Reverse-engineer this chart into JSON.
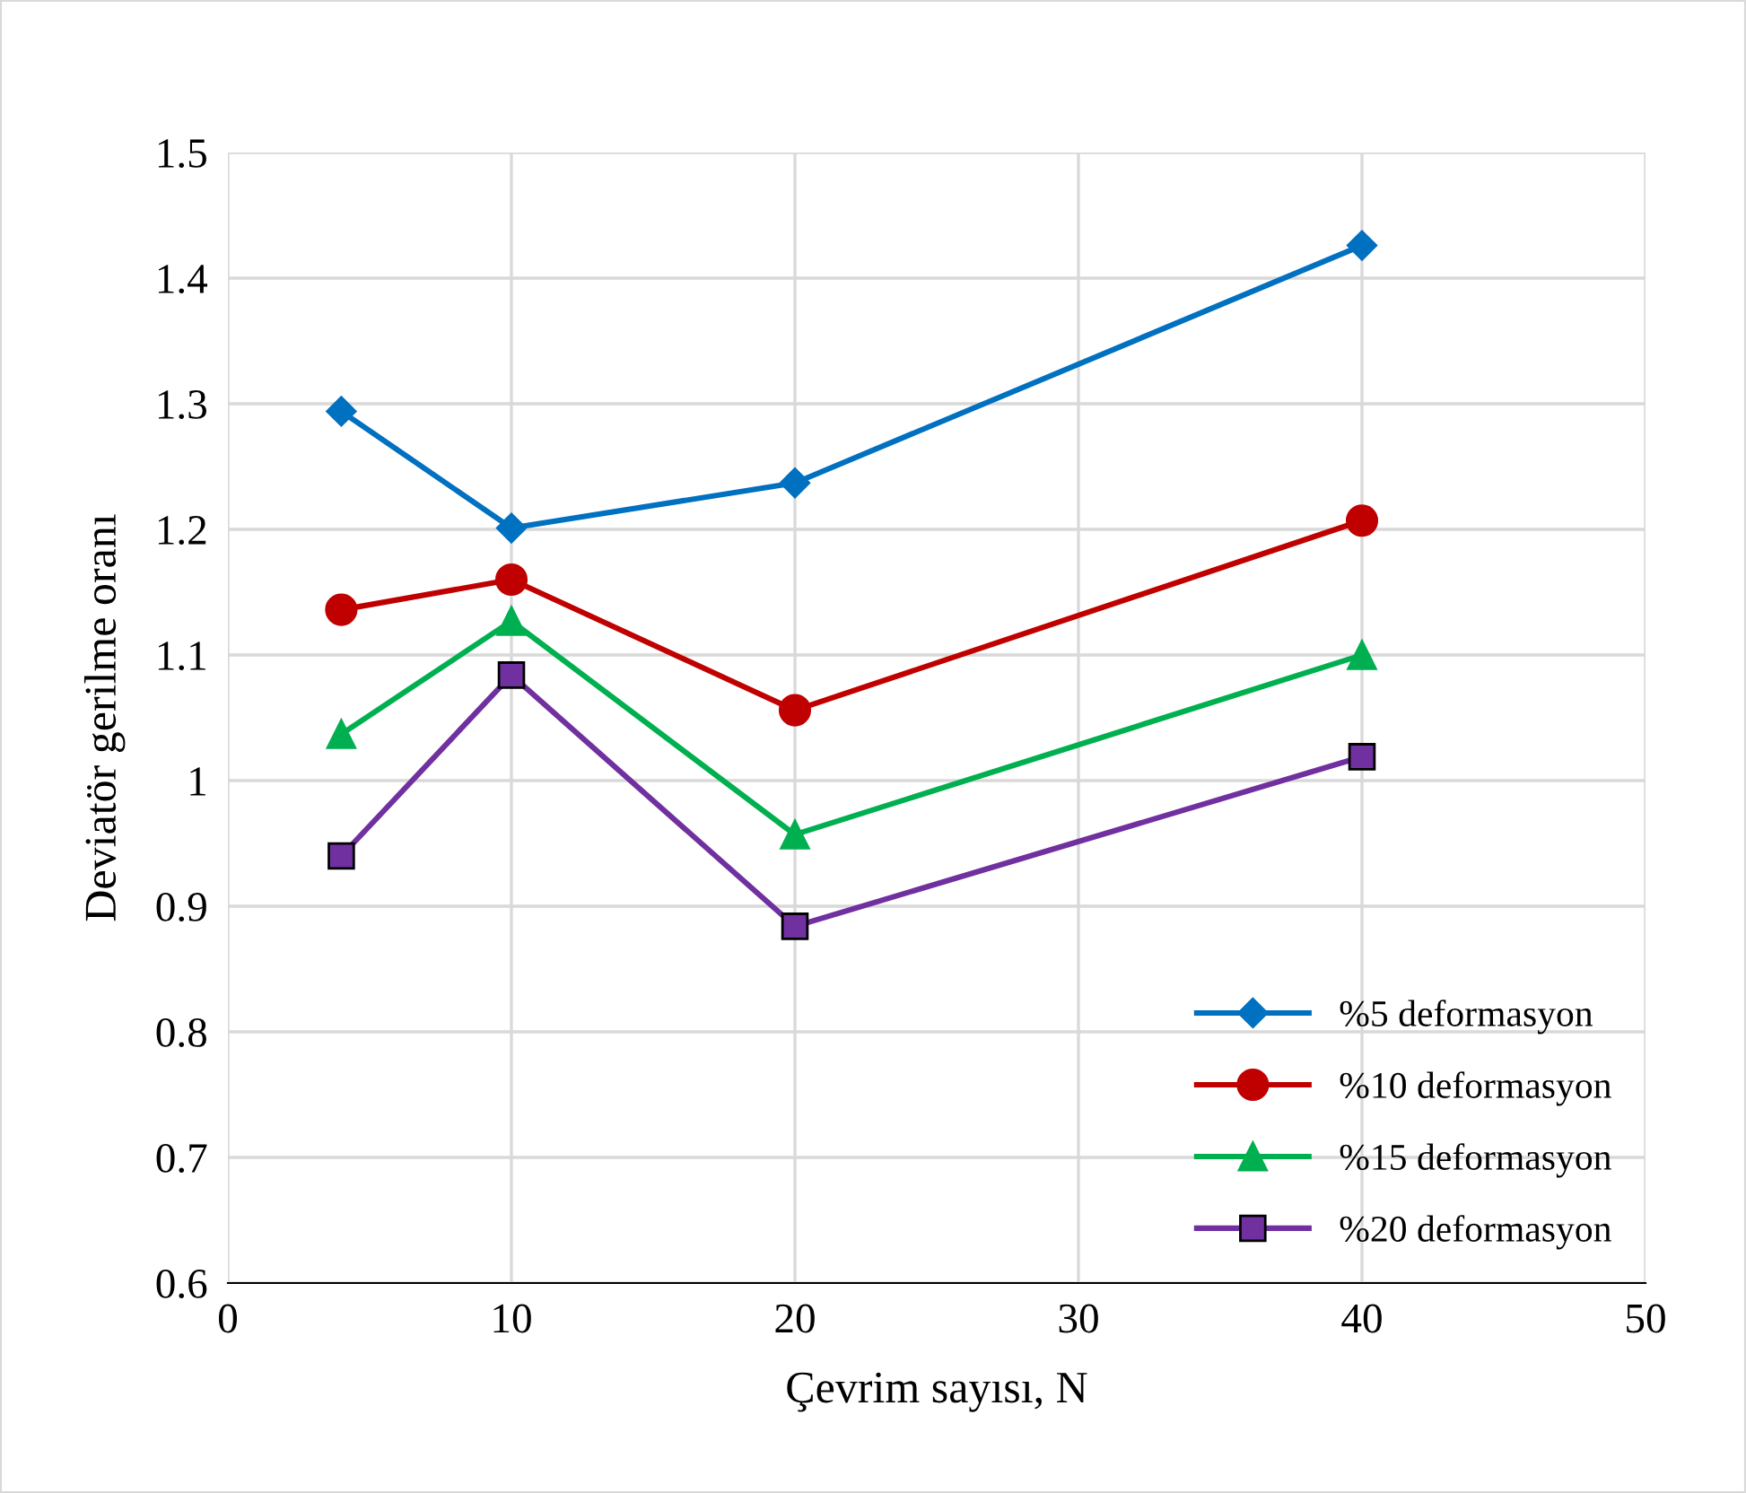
{
  "chart_data": {
    "type": "line",
    "xlabel": "Çevrim sayısı, N",
    "ylabel": "Deviatör gerilme oranı",
    "x": [
      4,
      10,
      20,
      40
    ],
    "series": [
      {
        "name": "%5 deformasyon",
        "color": "#0070c0",
        "marker": "diamond",
        "values": [
          1.294,
          1.201,
          1.237,
          1.426
        ]
      },
      {
        "name": "%10 deformasyon",
        "color": "#c00000",
        "marker": "circle",
        "values": [
          1.136,
          1.16,
          1.056,
          1.207
        ]
      },
      {
        "name": "%15 deformasyon",
        "color": "#00b050",
        "marker": "triangle",
        "values": [
          1.037,
          1.127,
          0.957,
          1.1
        ]
      },
      {
        "name": "%20 deformasyon",
        "color": "#7030a0",
        "marker": "square",
        "values": [
          0.94,
          1.084,
          0.884,
          1.019
        ]
      }
    ],
    "xlim": [
      0,
      50
    ],
    "xticks": [
      0,
      10,
      20,
      30,
      40,
      50
    ],
    "ylim": [
      0.6,
      1.5
    ],
    "yticks": [
      0.6,
      0.7,
      0.8,
      0.9,
      1,
      1.1,
      1.2,
      1.3,
      1.4,
      1.5
    ],
    "grid": true,
    "legend": "bottom right",
    "line_style": "solid"
  }
}
